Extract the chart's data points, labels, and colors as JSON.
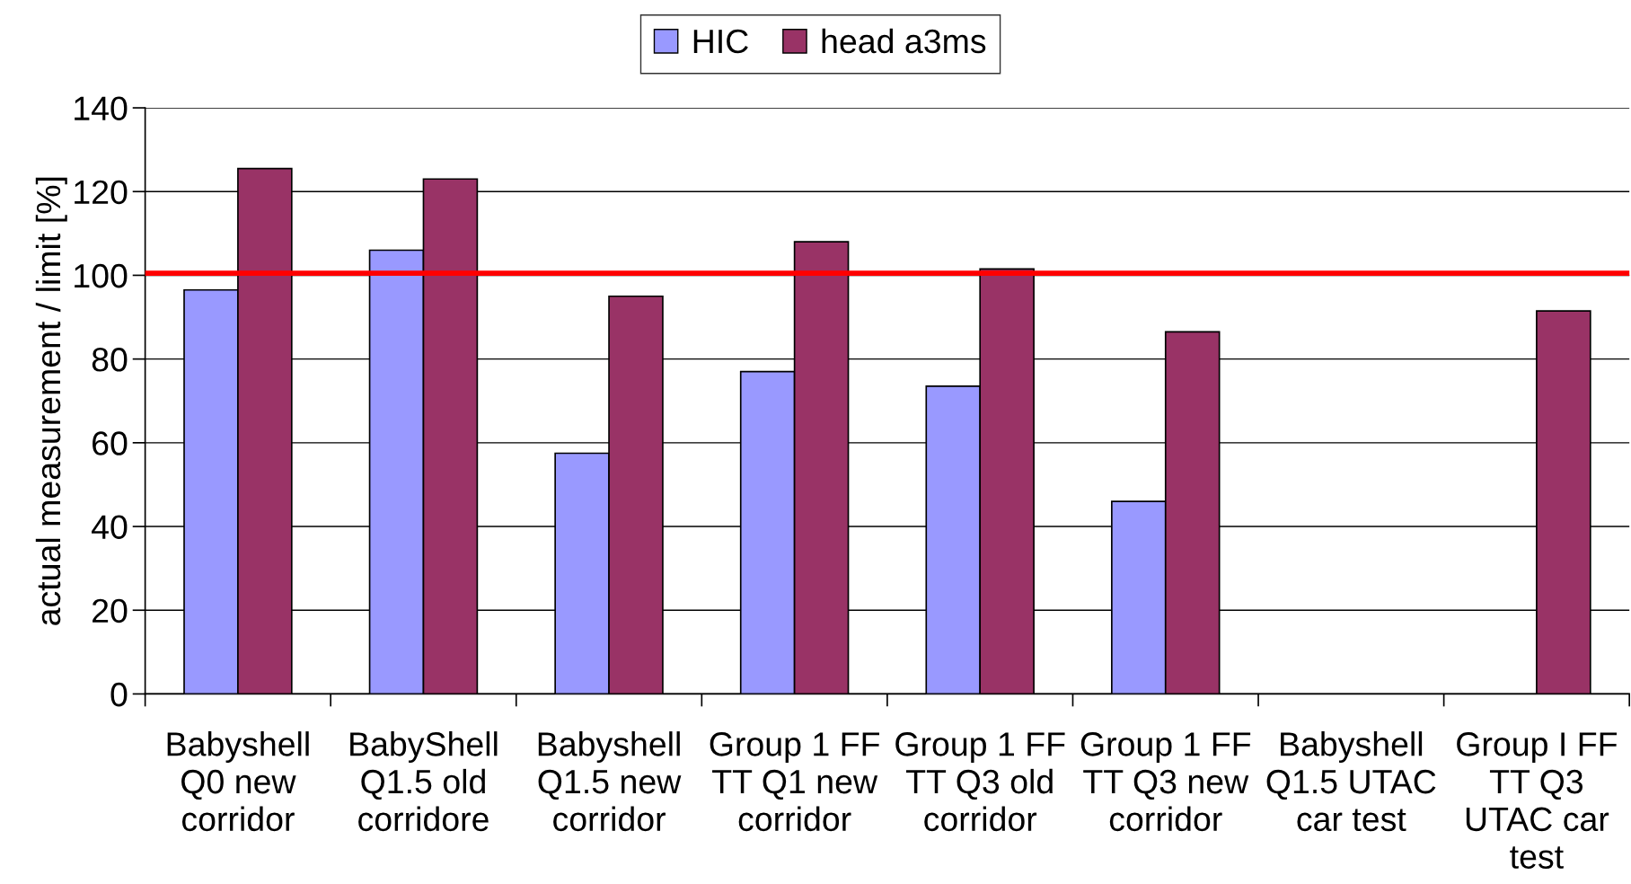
{
  "chart_data": {
    "type": "bar",
    "ylabel": "actual measurement / limit [%]",
    "categories": [
      "Babyshell\nQ0 new\ncorridor",
      "BabyShell\nQ1.5 old\ncorridore",
      "Babyshell\nQ1.5 new\ncorridor",
      "Group 1 FF\nTT Q1 new\ncorridor",
      "Group 1 FF\nTT Q3 old\ncorridor",
      "Group 1 FF\nTT Q3 new\ncorridor",
      "Babyshell\nQ1.5 UTAC\ncar test",
      "Group I FF\nTT Q3\nUTAC car\ntest"
    ],
    "series": [
      {
        "name": "HIC",
        "color": "#9999ff",
        "values": [
          96.5,
          106,
          57.5,
          77,
          73.5,
          46,
          null,
          null
        ]
      },
      {
        "name": "head a3ms",
        "color": "#993366",
        "values": [
          125.5,
          123,
          95,
          108,
          101.5,
          86.5,
          null,
          91.5
        ]
      }
    ],
    "ylim": [
      0,
      140
    ],
    "yticks": [
      0,
      20,
      40,
      60,
      80,
      100,
      120,
      140
    ],
    "ref_lines": [
      {
        "axis": "y",
        "value": 100.5,
        "color": "#ff0000"
      }
    ],
    "grid": "y",
    "legend": "top"
  }
}
